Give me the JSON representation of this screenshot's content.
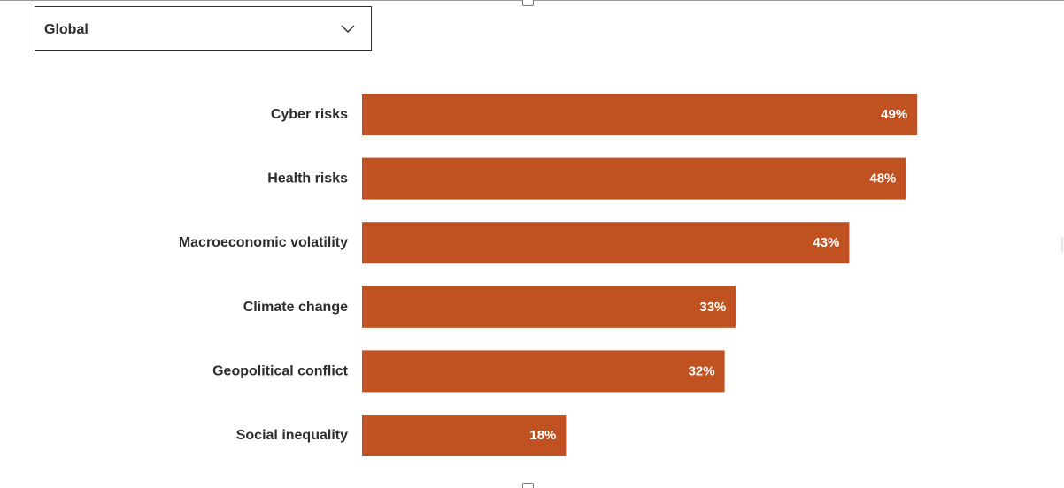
{
  "selector": {
    "selected": "Global",
    "icon": "chevron-down-icon"
  },
  "colors": {
    "bar": "#c05221",
    "label": "#2d2d2d",
    "value_label": "#ffffff"
  },
  "chart_data": {
    "type": "bar",
    "orientation": "horizontal",
    "categories": [
      "Cyber risks",
      "Health risks",
      "Macroeconomic volatility",
      "Climate change",
      "Geopolitical conflict",
      "Social inequality"
    ],
    "values": [
      49,
      48,
      43,
      33,
      32,
      18
    ],
    "value_labels": [
      "49%",
      "48%",
      "43%",
      "33%",
      "32%",
      "18%"
    ],
    "unit": "%",
    "xlim": [
      0,
      49
    ],
    "grid": false,
    "legend": "none"
  }
}
